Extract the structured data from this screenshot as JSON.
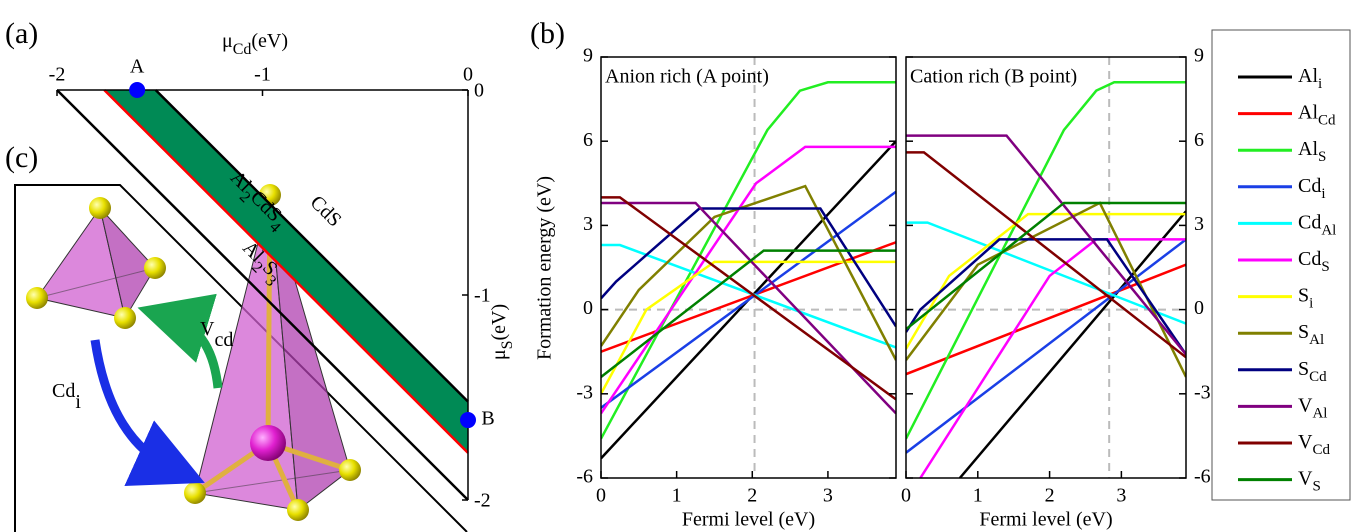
{
  "chart_data": [
    {
      "type": "stability",
      "panel": "(a)",
      "xlabel": [
        "μ",
        "Cd",
        "(eV)"
      ],
      "ylabel": [
        "μ",
        "S",
        "(eV)"
      ],
      "xlim": [
        -2,
        0
      ],
      "ylim": [
        -2,
        0
      ],
      "xticks": [
        -2,
        -1,
        0
      ],
      "yticks": [
        0,
        -1,
        -2
      ],
      "region": {
        "name": [
          "Al",
          "2",
          "CdS",
          "4"
        ],
        "color": "#008a55",
        "label_color": "#f5f500",
        "x": [
          -1.52,
          -1.77,
          0,
          0
        ],
        "values": [
          0,
          0,
          -1.77,
          -1.52
        ]
      },
      "series": [
        {
          "name": [
            "CdS"
          ],
          "color": "#000000",
          "x": [
            -1.52,
            0
          ],
          "values": [
            0,
            -1.52
          ]
        },
        {
          "name": [
            "Al",
            "2",
            "S",
            "3"
          ],
          "color": "#ff0000",
          "x": [
            -1.77,
            0
          ],
          "values": [
            0,
            -1.77
          ]
        },
        {
          "color": "#000000",
          "x": [
            -2,
            0
          ],
          "values": [
            0,
            -2
          ]
        }
      ],
      "points": {
        "names": [
          "A",
          "B"
        ],
        "x": [
          -1.61,
          0
        ],
        "values": [
          0,
          -1.61
        ],
        "color": "#0000ff"
      }
    },
    {
      "type": "line",
      "panel": "(b)",
      "ylabel": "Formation energy (eV)",
      "xlabel": "Fermi level (eV)",
      "xlim": [
        0,
        3.9
      ],
      "xticks": [
        0,
        1,
        2,
        3
      ],
      "ylim": [
        -6,
        9
      ],
      "yticks": [
        -6,
        -3,
        0,
        3,
        6,
        9
      ],
      "series": [
        {
          "name": [
            "Al",
            "i"
          ],
          "color": "#000000"
        },
        {
          "name": [
            "Al",
            "Cd"
          ],
          "color": "#ff0000"
        },
        {
          "name": [
            "Al",
            "S"
          ],
          "color": "#22ee22"
        },
        {
          "name": [
            "Cd",
            "i"
          ],
          "color": "#1a3fe6"
        },
        {
          "name": [
            "Cd",
            "Al"
          ],
          "color": "#00ffff"
        },
        {
          "name": [
            "Cd",
            "S"
          ],
          "color": "#ff00ff"
        },
        {
          "name": [
            "S",
            "i"
          ],
          "color": "#ffff00"
        },
        {
          "name": [
            "S",
            "Al"
          ],
          "color": "#808000"
        },
        {
          "name": [
            "S",
            "Cd"
          ],
          "color": "#000080"
        },
        {
          "name": [
            "V",
            "Al"
          ],
          "color": "#800080"
        },
        {
          "name": [
            "V",
            "Cd"
          ],
          "color": "#800000"
        },
        {
          "name": [
            "V",
            "S"
          ],
          "color": "#008000"
        }
      ],
      "subplots": [
        {
          "title": "Anion rich (A point)",
          "vline": 2.03,
          "hline": 0,
          "data": [
            {
              "x": [
                0,
                3.9
              ],
              "values": [
                -5.3,
                6.0
              ]
            },
            {
              "x": [
                0,
                3.9
              ],
              "values": [
                -1.5,
                2.4
              ]
            },
            {
              "x": [
                0,
                2.2,
                2.63,
                3.0,
                3.9
              ],
              "values": [
                -4.6,
                6.4,
                7.8,
                8.1,
                8.1
              ]
            },
            {
              "x": [
                0,
                3.9
              ],
              "values": [
                -3.5,
                4.2
              ]
            },
            {
              "x": [
                0,
                0.25,
                3.9
              ],
              "values": [
                2.3,
                2.3,
                -1.35
              ]
            },
            {
              "x": [
                0,
                2.05,
                2.7,
                3.9
              ],
              "values": [
                -3.7,
                4.5,
                5.8,
                5.8
              ]
            },
            {
              "x": [
                0,
                0.6,
                1.5,
                3.9
              ],
              "values": [
                -3.0,
                0,
                1.7,
                1.7
              ]
            },
            {
              "x": [
                0,
                0.5,
                1.5,
                2.7,
                3.9
              ],
              "values": [
                -1.3,
                0.7,
                3.3,
                4.4,
                -1.8
              ]
            },
            {
              "x": [
                0,
                0.2,
                1.3,
                2.9,
                3.9
              ],
              "values": [
                0.4,
                1.0,
                3.6,
                3.6,
                -0.6
              ]
            },
            {
              "x": [
                0,
                1.25,
                3.9
              ],
              "values": [
                3.8,
                3.8,
                -3.7
              ]
            },
            {
              "x": [
                0,
                0.25,
                3.9
              ],
              "values": [
                4.0,
                4.0,
                -3.2
              ]
            },
            {
              "x": [
                0,
                2.15,
                3.9
              ],
              "values": [
                -2.4,
                2.1,
                2.1
              ]
            }
          ]
        },
        {
          "title": "Cation rich (B point)",
          "vline": 2.83,
          "hline": 0,
          "data": [
            {
              "x": [
                0.75,
                3.9
              ],
              "values": [
                -6.0,
                3.5
              ]
            },
            {
              "x": [
                0,
                3.9
              ],
              "values": [
                -2.3,
                1.6
              ]
            },
            {
              "x": [
                0,
                2.2,
                2.65,
                2.9,
                3.9
              ],
              "values": [
                -4.6,
                6.4,
                7.8,
                8.1,
                8.1
              ]
            },
            {
              "x": [
                0,
                3.9
              ],
              "values": [
                -5.1,
                2.5
              ]
            },
            {
              "x": [
                0,
                0.3,
                3.9
              ],
              "values": [
                3.1,
                3.1,
                -0.5
              ]
            },
            {
              "x": [
                0.2,
                2.0,
                2.65,
                3.9
              ],
              "values": [
                -6.0,
                1.2,
                2.5,
                2.5
              ]
            },
            {
              "x": [
                0,
                0.6,
                1.7,
                3.9
              ],
              "values": [
                -1.4,
                1.2,
                3.4,
                3.4
              ]
            },
            {
              "x": [
                0,
                1.0,
                2.7,
                3.9
              ],
              "values": [
                -1.8,
                1.6,
                3.8,
                -2.4
              ]
            },
            {
              "x": [
                0,
                0.2,
                1.3,
                2.8,
                3.9
              ],
              "values": [
                -0.8,
                0,
                2.5,
                2.5,
                -1.6
              ]
            },
            {
              "x": [
                0,
                1.4,
                3.9
              ],
              "values": [
                6.2,
                6.2,
                -1.6
              ]
            },
            {
              "x": [
                0,
                0.25,
                3.9
              ],
              "values": [
                5.6,
                5.6,
                -1.7
              ]
            },
            {
              "x": [
                0,
                2.2,
                3.9
              ],
              "values": [
                -0.7,
                3.8,
                3.8
              ]
            }
          ]
        }
      ]
    },
    {
      "type": "diagram",
      "panel": "(c)",
      "labels": [
        {
          "text": [
            "V",
            "cd"
          ],
          "color": "#1aa550"
        },
        {
          "text": [
            "Cd",
            "i"
          ],
          "color": "#1a2fe6"
        }
      ]
    }
  ]
}
